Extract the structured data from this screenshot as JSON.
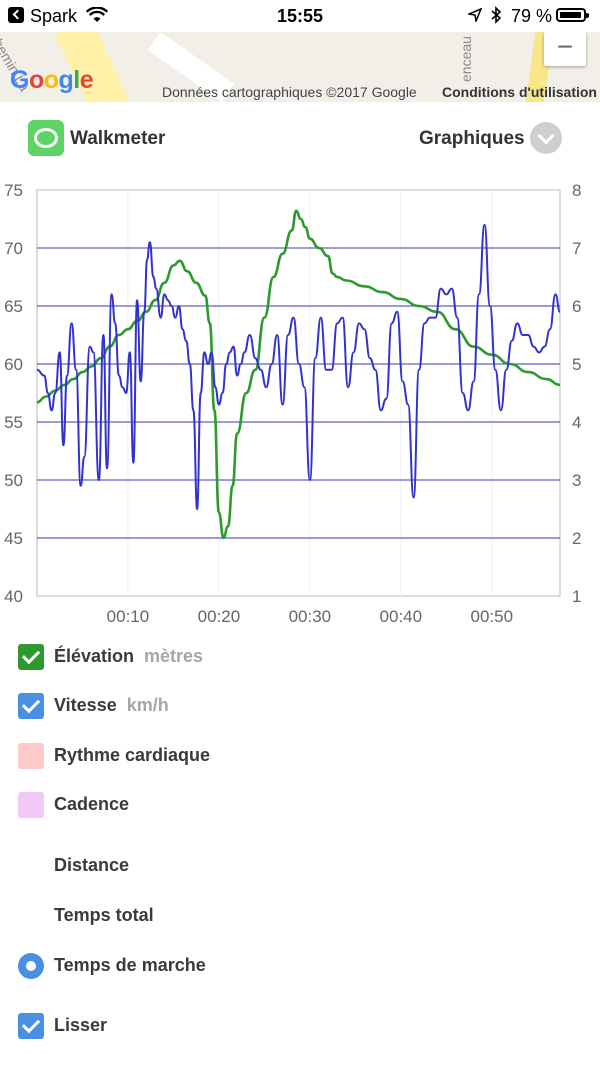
{
  "status_bar": {
    "carrier": "Spark",
    "time": "15:55",
    "battery_pct": "79 %"
  },
  "map": {
    "street_left": "hemin La",
    "street_right": "enceau",
    "zoom_out": "−",
    "logo": "Google",
    "attribution": "Données cartographiques ©2017 Google",
    "terms": "Conditions d'utilisation"
  },
  "header": {
    "app_name": "Walkmeter",
    "view_menu": "Graphiques"
  },
  "colors": {
    "elevation": "#2e9a2e",
    "speed": "#3333cc",
    "checkbox_green": "#2e9a2e",
    "checkbox_blue": "#4a90e2",
    "heart_rate": "#ffc9c9",
    "cadence": "#f1c9f5"
  },
  "chart_data": {
    "type": "line",
    "x_label": "",
    "x_range_minutes": [
      0,
      57.5
    ],
    "x_ticks": [
      "00:10",
      "00:20",
      "00:30",
      "00:40",
      "00:50"
    ],
    "x_tick_minutes": [
      10,
      20,
      30,
      40,
      50
    ],
    "y_left": {
      "range": [
        40,
        75
      ],
      "ticks": [
        "40",
        "45",
        "50",
        "55",
        "60",
        "65",
        "70",
        "75"
      ]
    },
    "y_right": {
      "range": [
        1,
        8
      ],
      "ticks": [
        "1",
        "2",
        "3",
        "4",
        "5",
        "6",
        "7",
        "8"
      ]
    },
    "gridlines_left": [
      45,
      50,
      55,
      60,
      65,
      70
    ],
    "series": [
      {
        "name": "Élévation",
        "axis": "left",
        "x": [
          0,
          1,
          2,
          3,
          4,
          5,
          6,
          7,
          8,
          9,
          10,
          11,
          12,
          13,
          14,
          15,
          15.7,
          16.5,
          17.5,
          18.5,
          19,
          19.5,
          20,
          20.5,
          21,
          21.5,
          22,
          23,
          24,
          25,
          26,
          27,
          28,
          28.5,
          29,
          29.5,
          30,
          31,
          32,
          32.5,
          33,
          34,
          36,
          38,
          40,
          42,
          44,
          46,
          48,
          50,
          52,
          54,
          56,
          57.5
        ],
        "y": [
          56.7,
          57.2,
          57.7,
          58.2,
          58.7,
          59.3,
          59.8,
          60.5,
          61.5,
          62.5,
          63.0,
          63.7,
          64.5,
          65.5,
          67.0,
          68.5,
          68.9,
          68.0,
          67.0,
          65.9,
          63.5,
          56.0,
          47.2,
          45.0,
          46.0,
          49.5,
          54.0,
          57.5,
          59.5,
          64.0,
          67.5,
          69.5,
          71.5,
          73.2,
          72.5,
          71.8,
          70.8,
          70.0,
          69.3,
          67.8,
          67.5,
          67.2,
          66.7,
          66.2,
          65.6,
          65.0,
          64.5,
          63.0,
          61.5,
          60.8,
          60.0,
          59.3,
          58.7,
          58.2
        ]
      },
      {
        "name": "Vitesse",
        "axis": "right",
        "x": [
          0,
          0.8,
          1.2,
          1.6,
          2.0,
          2.5,
          2.9,
          3.3,
          3.8,
          4.3,
          4.8,
          5.2,
          5.8,
          6.2,
          6.8,
          7.3,
          7.7,
          8.2,
          8.6,
          9.0,
          9.4,
          9.8,
          10.2,
          10.6,
          11.0,
          11.4,
          11.8,
          12.1,
          12.4,
          12.8,
          13.1,
          13.6,
          14.0,
          14.4,
          14.8,
          15.2,
          15.6,
          16.0,
          16.4,
          16.8,
          17.2,
          17.6,
          18.0,
          18.4,
          18.8,
          19.2,
          19.6,
          20.0,
          20.4,
          20.8,
          21.2,
          21.6,
          22.0,
          22.4,
          22.8,
          23.4,
          24.0,
          24.6,
          25.2,
          25.8,
          26.4,
          27.0,
          27.6,
          28.2,
          28.8,
          29.4,
          30.0,
          30.6,
          31.2,
          31.8,
          32.4,
          33.0,
          33.6,
          34.2,
          34.8,
          35.4,
          36.0,
          36.6,
          37.2,
          37.8,
          38.4,
          39.0,
          39.6,
          40.2,
          40.8,
          41.4,
          42.0,
          42.6,
          43.2,
          43.8,
          44.4,
          45.0,
          45.6,
          46.2,
          46.8,
          47.4,
          48.0,
          48.6,
          49.2,
          49.8,
          50.4,
          51.0,
          51.6,
          52.2,
          52.8,
          53.4,
          54.0,
          54.6,
          55.2,
          55.8,
          56.4,
          57.0,
          57.5
        ],
        "y": [
          4.9,
          4.8,
          4.5,
          4.2,
          4.5,
          5.2,
          3.6,
          4.8,
          5.7,
          4.9,
          2.9,
          3.4,
          5.3,
          5.2,
          3.0,
          5.5,
          3.2,
          6.2,
          5.7,
          4.8,
          4.6,
          4.5,
          5.2,
          3.3,
          6.1,
          4.7,
          5.9,
          6.8,
          7.1,
          6.5,
          6.3,
          5.8,
          6.2,
          6.1,
          6.0,
          5.8,
          6.0,
          5.6,
          5.4,
          5.0,
          4.2,
          2.5,
          4.5,
          5.2,
          5.0,
          5.2,
          4.6,
          4.3,
          4.5,
          5.0,
          5.2,
          5.3,
          4.8,
          5.0,
          5.2,
          5.5,
          5.1,
          4.9,
          4.6,
          5.0,
          5.5,
          4.3,
          5.5,
          5.8,
          5.0,
          4.6,
          3.0,
          5.1,
          5.8,
          4.9,
          4.9,
          5.7,
          5.8,
          4.6,
          5.2,
          5.7,
          5.6,
          5.1,
          4.9,
          4.2,
          4.4,
          5.7,
          5.9,
          4.7,
          4.3,
          2.7,
          4.9,
          5.7,
          5.8,
          5.8,
          6.3,
          6.2,
          6.3,
          5.8,
          4.5,
          4.2,
          4.7,
          6.2,
          7.4,
          6.0,
          4.9,
          4.2,
          4.9,
          5.4,
          5.7,
          5.5,
          5.5,
          5.3,
          5.2,
          5.3,
          5.6,
          6.2,
          5.9
        ]
      }
    ],
    "grid": true,
    "legend": "none"
  },
  "options": [
    {
      "label": "Élévation",
      "unit": "mètres",
      "control": "checkbox",
      "checked": true,
      "color": "#2e9a2e"
    },
    {
      "label": "Vitesse",
      "unit": "km/h",
      "control": "checkbox",
      "checked": true,
      "color": "#4a90e2"
    },
    {
      "label": "Rythme cardiaque",
      "unit": "",
      "control": "checkbox",
      "checked": false,
      "color": "#ffc9c9"
    },
    {
      "label": "Cadence",
      "unit": "",
      "control": "checkbox",
      "checked": false,
      "color": "#f1c9f5"
    },
    {
      "label": "Distance",
      "unit": "",
      "control": "none",
      "checked": false,
      "color": ""
    },
    {
      "label": "Temps total",
      "unit": "",
      "control": "none",
      "checked": false,
      "color": ""
    },
    {
      "label": "Temps de marche",
      "unit": "",
      "control": "radio",
      "checked": true,
      "color": "#4a90e2"
    },
    {
      "label": "Lisser",
      "unit": "",
      "control": "checkbox",
      "checked": true,
      "color": "#4a90e2"
    }
  ]
}
